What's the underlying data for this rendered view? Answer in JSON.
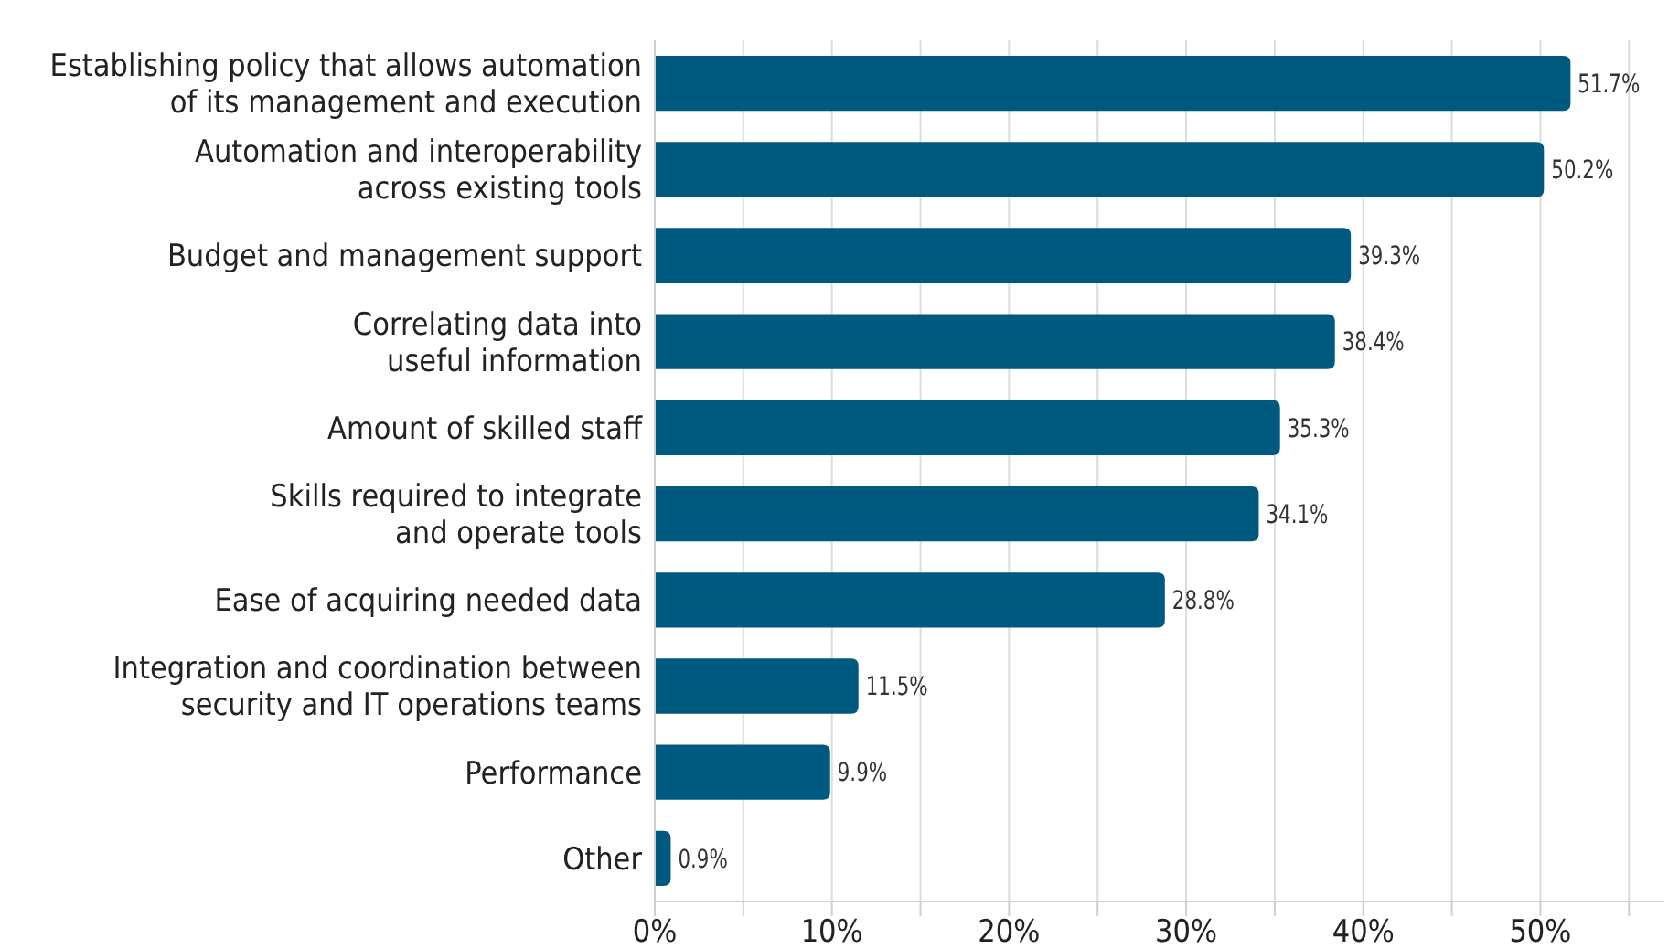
{
  "chart_data": {
    "type": "bar",
    "orientation": "horizontal",
    "categories": [
      "Establishing policy that allows automation\nof its management and execution",
      "Automation and interoperability\nacross existing tools",
      "Budget and management support",
      "Correlating data into\nuseful information",
      "Amount of skilled staff",
      "Skills required to integrate\nand operate tools",
      "Ease of acquiring needed data",
      "Integration and coordination between\nsecurity and IT operations teams",
      "Performance",
      "Other"
    ],
    "values": [
      51.7,
      50.2,
      39.3,
      38.4,
      35.3,
      34.1,
      28.8,
      11.5,
      9.9,
      0.9
    ],
    "value_labels": [
      "51.7%",
      "50.2%",
      "39.3%",
      "38.4%",
      "35.3%",
      "34.1%",
      "28.8%",
      "11.5%",
      "9.9%",
      "0.9%"
    ],
    "color": "#005a80",
    "xlim": [
      0,
      57
    ],
    "xticks": [
      {
        "value": 0,
        "label": "0%"
      },
      {
        "value": 5,
        "label": null
      },
      {
        "value": 10,
        "label": "10%"
      },
      {
        "value": 15,
        "label": null
      },
      {
        "value": 20,
        "label": "20%"
      },
      {
        "value": 25,
        "label": null
      },
      {
        "value": 30,
        "label": "30%"
      },
      {
        "value": 35,
        "label": null
      },
      {
        "value": 40,
        "label": "40%"
      },
      {
        "value": 45,
        "label": null
      },
      {
        "value": 50,
        "label": "50%"
      },
      {
        "value": 55,
        "label": null
      }
    ],
    "grid": "x"
  }
}
